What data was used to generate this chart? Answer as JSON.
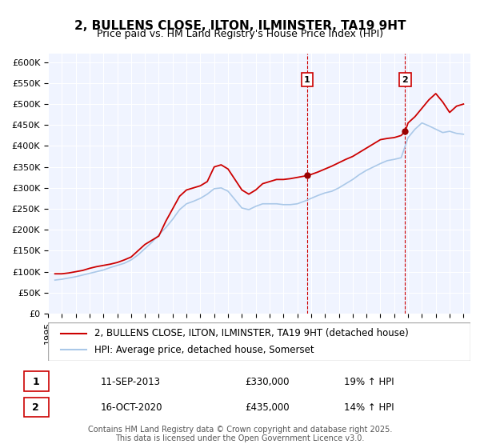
{
  "title": "2, BULLENS CLOSE, ILTON, ILMINSTER, TA19 9HT",
  "subtitle": "Price paid vs. HM Land Registry's House Price Index (HPI)",
  "ylabel": "",
  "ylim": [
    0,
    620000
  ],
  "yticks": [
    0,
    50000,
    100000,
    150000,
    200000,
    250000,
    300000,
    350000,
    400000,
    450000,
    500000,
    550000,
    600000
  ],
  "ytick_labels": [
    "£0",
    "£50K",
    "£100K",
    "£150K",
    "£200K",
    "£250K",
    "£300K",
    "£350K",
    "£400K",
    "£450K",
    "£500K",
    "£550K",
    "£600K"
  ],
  "xlim_start": 1995.0,
  "xlim_end": 2025.5,
  "background_color": "#f0f4ff",
  "plot_bg_color": "#f0f4ff",
  "red_line_color": "#cc0000",
  "blue_line_color": "#aac8e8",
  "marker_color": "#990000",
  "vline_color": "#cc0000",
  "legend1_label": "2, BULLENS CLOSE, ILTON, ILMINSTER, TA19 9HT (detached house)",
  "legend2_label": "HPI: Average price, detached house, Somerset",
  "sale1_date": 2013.71,
  "sale1_price": 330000,
  "sale1_label": "1",
  "sale2_date": 2020.79,
  "sale2_price": 435000,
  "sale2_label": "2",
  "footer": "Contains HM Land Registry data © Crown copyright and database right 2025.\nThis data is licensed under the Open Government Licence v3.0.",
  "title_fontsize": 11,
  "subtitle_fontsize": 9,
  "tick_fontsize": 8,
  "legend_fontsize": 8.5,
  "footer_fontsize": 7,
  "red_data": {
    "x": [
      1995.5,
      1996.0,
      1996.5,
      1997.0,
      1997.5,
      1998.0,
      1998.5,
      1999.0,
      1999.5,
      2000.0,
      2000.5,
      2001.0,
      2001.5,
      2002.0,
      2002.5,
      2003.0,
      2003.5,
      2004.0,
      2004.5,
      2005.0,
      2005.5,
      2006.0,
      2006.5,
      2007.0,
      2007.5,
      2008.0,
      2008.5,
      2009.0,
      2009.5,
      2010.0,
      2010.5,
      2011.0,
      2011.5,
      2012.0,
      2012.5,
      2013.0,
      2013.5,
      2013.71,
      2014.0,
      2014.5,
      2015.0,
      2015.5,
      2016.0,
      2016.5,
      2017.0,
      2017.5,
      2018.0,
      2018.5,
      2019.0,
      2019.5,
      2020.0,
      2020.5,
      2020.79,
      2021.0,
      2021.5,
      2022.0,
      2022.5,
      2023.0,
      2023.5,
      2024.0,
      2024.5,
      2025.0
    ],
    "y": [
      95000,
      95000,
      97000,
      100000,
      103000,
      108000,
      112000,
      115000,
      118000,
      122000,
      128000,
      135000,
      150000,
      165000,
      175000,
      185000,
      220000,
      250000,
      280000,
      295000,
      300000,
      305000,
      315000,
      350000,
      355000,
      345000,
      320000,
      295000,
      285000,
      295000,
      310000,
      315000,
      320000,
      320000,
      322000,
      325000,
      328000,
      330000,
      332000,
      338000,
      345000,
      352000,
      360000,
      368000,
      375000,
      385000,
      395000,
      405000,
      415000,
      418000,
      420000,
      425000,
      435000,
      455000,
      470000,
      490000,
      510000,
      525000,
      505000,
      480000,
      495000,
      500000
    ]
  },
  "blue_data": {
    "x": [
      1995.5,
      1996.0,
      1996.5,
      1997.0,
      1997.5,
      1998.0,
      1998.5,
      1999.0,
      1999.5,
      2000.0,
      2000.5,
      2001.0,
      2001.5,
      2002.0,
      2002.5,
      2003.0,
      2003.5,
      2004.0,
      2004.5,
      2005.0,
      2005.5,
      2006.0,
      2006.5,
      2007.0,
      2007.5,
      2008.0,
      2008.5,
      2009.0,
      2009.5,
      2010.0,
      2010.5,
      2011.0,
      2011.5,
      2012.0,
      2012.5,
      2013.0,
      2013.5,
      2014.0,
      2014.5,
      2015.0,
      2015.5,
      2016.0,
      2016.5,
      2017.0,
      2017.5,
      2018.0,
      2018.5,
      2019.0,
      2019.5,
      2020.0,
      2020.5,
      2021.0,
      2021.5,
      2022.0,
      2022.5,
      2023.0,
      2023.5,
      2024.0,
      2024.5,
      2025.0
    ],
    "y": [
      80000,
      82000,
      85000,
      88000,
      92000,
      96000,
      100000,
      104000,
      110000,
      115000,
      120000,
      128000,
      140000,
      155000,
      170000,
      188000,
      205000,
      225000,
      248000,
      262000,
      268000,
      275000,
      285000,
      298000,
      300000,
      292000,
      272000,
      252000,
      248000,
      256000,
      262000,
      262000,
      262000,
      260000,
      260000,
      262000,
      268000,
      275000,
      282000,
      288000,
      292000,
      300000,
      310000,
      320000,
      332000,
      342000,
      350000,
      358000,
      365000,
      368000,
      372000,
      420000,
      440000,
      455000,
      448000,
      440000,
      432000,
      435000,
      430000,
      428000
    ]
  }
}
